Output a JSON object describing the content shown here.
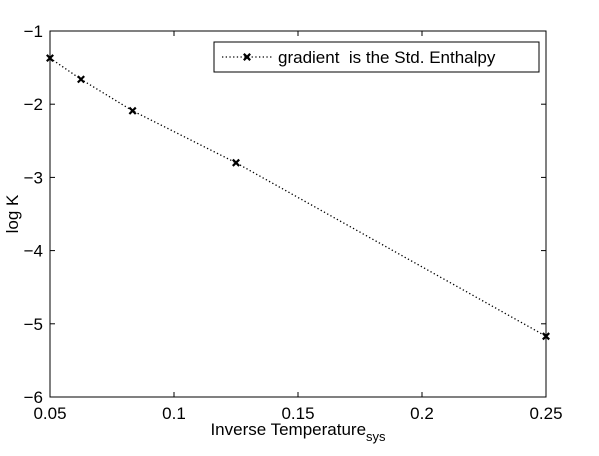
{
  "chart_data": {
    "type": "line",
    "xlabel": "Inverse Temperature",
    "xlabel_subscript": "sys",
    "ylabel": "log K",
    "xlim": [
      0.05,
      0.25
    ],
    "ylim": [
      -6,
      -1
    ],
    "x_ticks": [
      0.05,
      0.1,
      0.15,
      0.2,
      0.25
    ],
    "x_tick_labels": [
      "0.05",
      "0.1",
      "0.15",
      "0.2",
      "0.25"
    ],
    "y_ticks": [
      -6,
      -5,
      -4,
      -3,
      -2,
      -1
    ],
    "y_tick_labels": [
      "−6",
      "−5",
      "−4",
      "−3",
      "−2",
      "−1"
    ],
    "grid": false,
    "legend_position": "top-right",
    "series": [
      {
        "name": "gradient  is the Std. Enthalpy",
        "line_style": "dotted",
        "marker": "x",
        "color": "#000000",
        "x": [
          0.05,
          0.0625,
          0.0833,
          0.125,
          0.25
        ],
        "y": [
          -1.37,
          -1.66,
          -2.09,
          -2.8,
          -5.17
        ]
      }
    ]
  }
}
